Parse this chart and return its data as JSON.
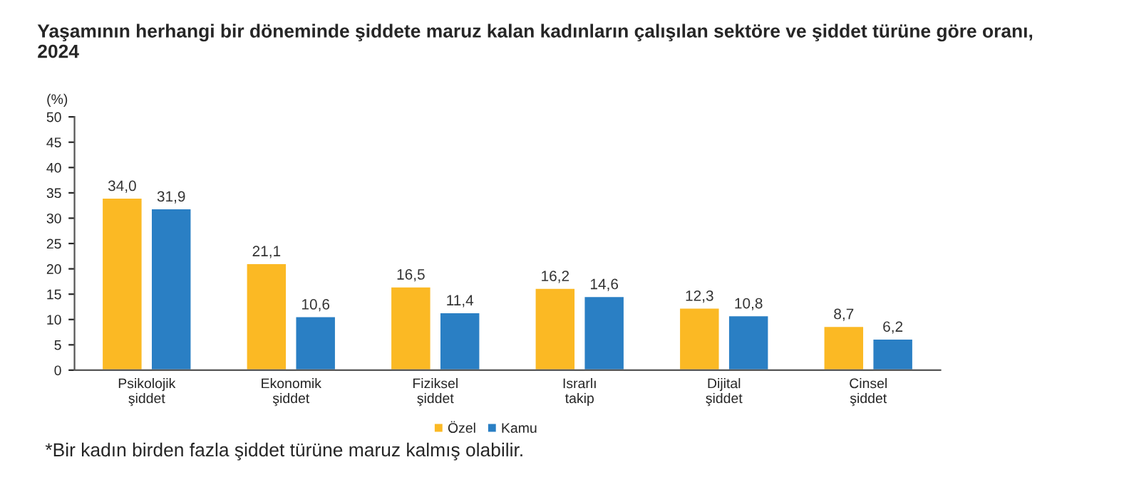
{
  "chart_data": {
    "type": "bar",
    "title": "Yaşamının herhangi bir döneminde şiddete maruz kalan kadınların çalışılan sektöre ve şiddet türüne göre oranı,\n2024",
    "ylabel": "(%)",
    "categories": [
      "Psikolojik\nşiddet",
      "Ekonomik\nşiddet",
      "Fiziksel\nşiddet",
      "Israrlı\ntakip",
      "Dijital\nşiddet",
      "Cinsel\nşiddet"
    ],
    "series": [
      {
        "name": "Özel",
        "color": "#fbb924",
        "values": [
          34.0,
          21.1,
          16.5,
          16.2,
          12.3,
          8.7
        ],
        "value_labels": [
          "34,0",
          "21,1",
          "16,5",
          "16,2",
          "12,3",
          "8,7"
        ]
      },
      {
        "name": "Kamu",
        "color": "#2a7fc4",
        "values": [
          31.9,
          10.6,
          11.4,
          14.6,
          10.8,
          6.2
        ],
        "value_labels": [
          "31,9",
          "10,6",
          "11,4",
          "14,6",
          "10,8",
          "6,2"
        ]
      }
    ],
    "ylim": [
      0,
      50
    ],
    "yticks": [
      0,
      5,
      10,
      15,
      20,
      25,
      30,
      35,
      40,
      45,
      50
    ],
    "grid": false,
    "legend": "bottom",
    "annotations": [
      "*Bir kadın birden fazla şiddet türüne maruz kalmış olabilir."
    ]
  }
}
